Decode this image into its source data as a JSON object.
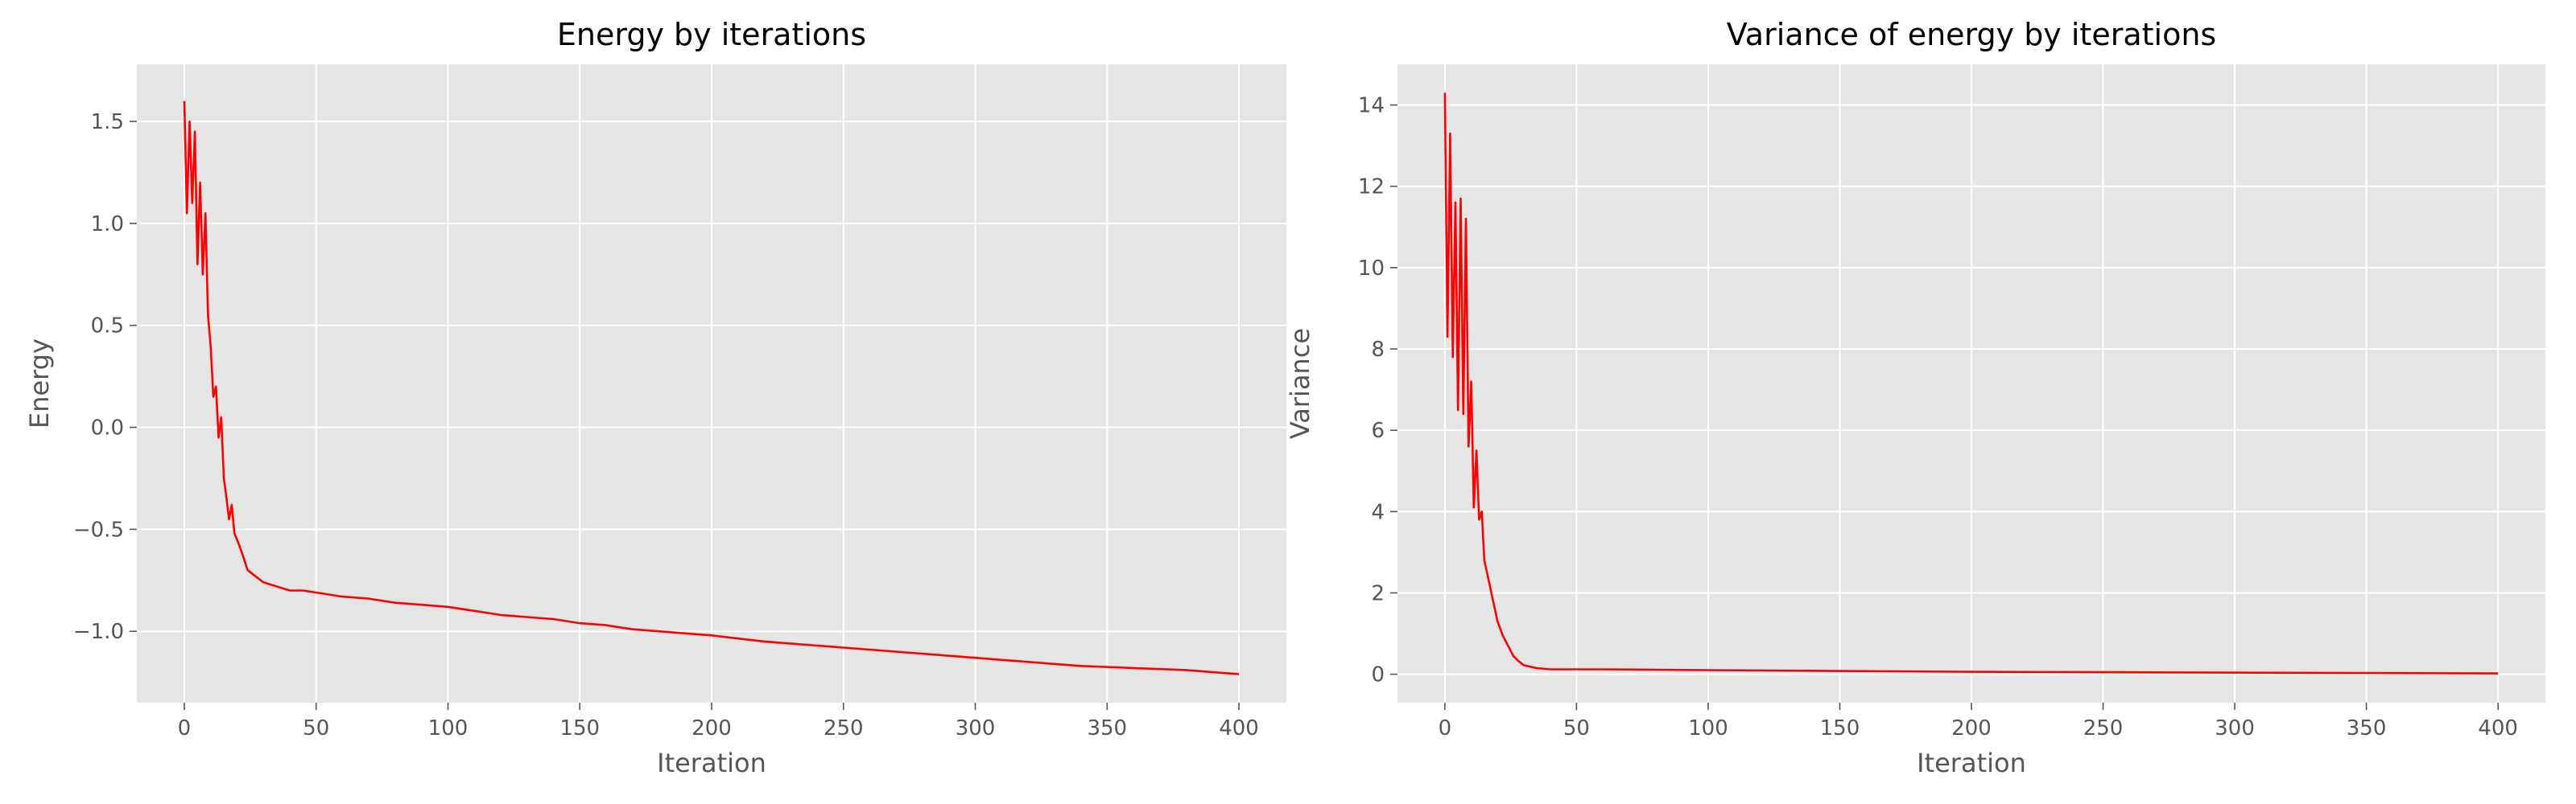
{
  "colors": {
    "series": "#ff0000",
    "plot_background": "#e5e5e5",
    "grid": "#ffffff"
  },
  "chart_data": [
    {
      "type": "line",
      "title": "Energy by iterations",
      "xlabel": "Iteration",
      "ylabel": "Energy",
      "xlim": [
        -18,
        418
      ],
      "ylim": [
        -1.35,
        1.78
      ],
      "xticks": [
        0,
        50,
        100,
        150,
        200,
        250,
        300,
        350,
        400
      ],
      "xtick_labels": [
        "0",
        "50",
        "100",
        "150",
        "200",
        "250",
        "300",
        "350",
        "400"
      ],
      "yticks": [
        1.5,
        1.0,
        0.5,
        0.0,
        -0.5,
        -1.0
      ],
      "ytick_labels": [
        "1.5",
        "1.0",
        "0.5",
        "0.0",
        "−0.5",
        "−1.0"
      ],
      "grid": true,
      "series": [
        {
          "color": "#ff0000",
          "x": [
            0,
            1,
            2,
            3,
            4,
            5,
            6,
            7,
            8,
            9,
            10,
            11,
            12,
            13,
            14,
            15,
            16,
            17,
            18,
            19,
            20,
            22,
            24,
            26,
            28,
            30,
            35,
            40,
            45,
            50,
            60,
            70,
            80,
            90,
            100,
            110,
            120,
            130,
            140,
            150,
            160,
            170,
            180,
            190,
            200,
            220,
            240,
            260,
            280,
            300,
            320,
            340,
            360,
            380,
            400
          ],
          "y": [
            1.6,
            1.05,
            1.5,
            1.1,
            1.45,
            0.8,
            1.2,
            0.75,
            1.05,
            0.55,
            0.4,
            0.15,
            0.2,
            -0.05,
            0.05,
            -0.25,
            -0.35,
            -0.45,
            -0.38,
            -0.52,
            -0.55,
            -0.62,
            -0.7,
            -0.72,
            -0.74,
            -0.76,
            -0.78,
            -0.8,
            -0.8,
            -0.81,
            -0.83,
            -0.84,
            -0.86,
            -0.87,
            -0.88,
            -0.9,
            -0.92,
            -0.93,
            -0.94,
            -0.96,
            -0.97,
            -0.99,
            -1.0,
            -1.01,
            -1.02,
            -1.05,
            -1.07,
            -1.09,
            -1.11,
            -1.13,
            -1.15,
            -1.17,
            -1.18,
            -1.19,
            -1.21
          ]
        }
      ]
    },
    {
      "type": "line",
      "title": "Variance of energy by iterations",
      "xlabel": "Iteration",
      "ylabel": "Variance",
      "xlim": [
        -18,
        418
      ],
      "ylim": [
        -0.7,
        15.0
      ],
      "xticks": [
        0,
        50,
        100,
        150,
        200,
        250,
        300,
        350,
        400
      ],
      "xtick_labels": [
        "0",
        "50",
        "100",
        "150",
        "200",
        "250",
        "300",
        "350",
        "400"
      ],
      "yticks": [
        0,
        2,
        4,
        6,
        8,
        10,
        12,
        14
      ],
      "ytick_labels": [
        "0",
        "2",
        "4",
        "6",
        "8",
        "10",
        "12",
        "14"
      ],
      "grid": true,
      "series": [
        {
          "color": "#ff0000",
          "x": [
            0,
            1,
            2,
            3,
            4,
            5,
            6,
            7,
            8,
            9,
            10,
            11,
            12,
            13,
            14,
            15,
            16,
            17,
            18,
            19,
            20,
            22,
            24,
            26,
            28,
            30,
            35,
            40,
            45,
            50,
            60,
            80,
            100,
            150,
            200,
            250,
            300,
            350,
            400
          ],
          "y": [
            14.3,
            8.3,
            13.3,
            7.8,
            11.6,
            6.5,
            11.7,
            6.4,
            11.2,
            5.6,
            7.2,
            4.1,
            5.5,
            3.8,
            4.0,
            2.8,
            2.5,
            2.2,
            1.9,
            1.6,
            1.3,
            0.95,
            0.7,
            0.45,
            0.32,
            0.22,
            0.15,
            0.12,
            0.12,
            0.12,
            0.12,
            0.11,
            0.1,
            0.08,
            0.06,
            0.05,
            0.04,
            0.03,
            0.02
          ]
        }
      ]
    }
  ]
}
